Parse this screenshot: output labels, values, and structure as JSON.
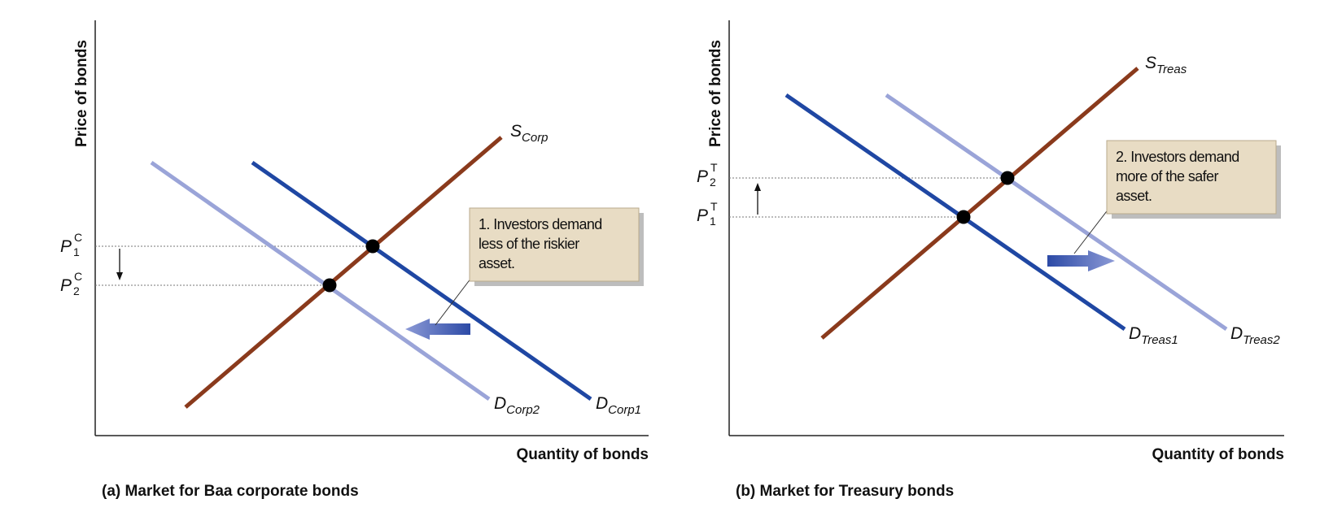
{
  "panel_a": {
    "caption": "(a) Market for Baa corporate bonds",
    "y_axis_label": "Price of bonds",
    "x_axis_label": "Quantity of bonds",
    "supply_label": {
      "main": "S",
      "sub": "Corp"
    },
    "demand1_label": {
      "main": "D",
      "sub": "Corp1"
    },
    "demand2_label": {
      "main": "D",
      "sub": "Corp2"
    },
    "price1_label": {
      "main": "P",
      "sub": "1",
      "sup": "C"
    },
    "price2_label": {
      "main": "P",
      "sub": "2",
      "sup": "C"
    },
    "note": [
      "1. Investors demand",
      "less of the riskier",
      "asset."
    ]
  },
  "panel_b": {
    "caption": "(b) Market for Treasury bonds",
    "y_axis_label": "Price of bonds",
    "x_axis_label": "Quantity of bonds",
    "supply_label": {
      "main": "S",
      "sub": "Treas"
    },
    "demand1_label": {
      "main": "D",
      "sub": "Treas1"
    },
    "demand2_label": {
      "main": "D",
      "sub": "Treas2"
    },
    "price1_label": {
      "main": "P",
      "sub": "1",
      "sup": "T"
    },
    "price2_label": {
      "main": "P",
      "sub": "2",
      "sup": "T"
    },
    "note": [
      "2. Investors demand",
      "more of the safer",
      "asset."
    ]
  },
  "colors": {
    "supply": "#8a3a1c",
    "demand_original": "#1f47a3",
    "demand_shifted": "#9aa4d8",
    "note_fill": "#e8dcc4",
    "shift_arrow": "#3d5bb0"
  }
}
